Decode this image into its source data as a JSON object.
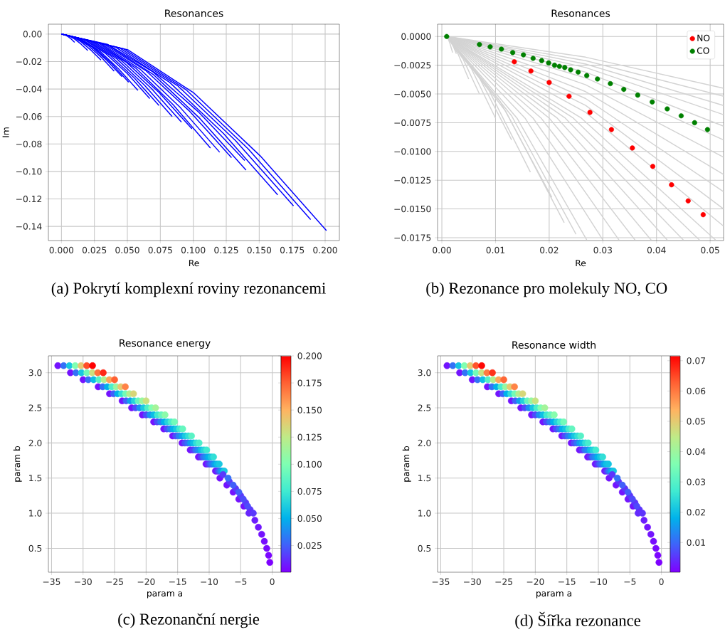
{
  "chart_data": [
    {
      "type": "line",
      "title": "Resonances",
      "xlabel": "Re",
      "ylabel": "Im",
      "grid": true,
      "xlim": [
        -0.0099,
        0.2108
      ],
      "ylim": [
        -0.1503,
        0.0072
      ],
      "xticks": [
        {
          "value": 0,
          "label": "0.000"
        },
        {
          "value": 0.025,
          "label": "0.025"
        },
        {
          "value": 0.05,
          "label": "0.050"
        },
        {
          "value": 0.075,
          "label": "0.075"
        },
        {
          "value": 0.1,
          "label": "0.100"
        },
        {
          "value": 0.125,
          "label": "0.125"
        },
        {
          "value": 0.15,
          "label": "0.150"
        },
        {
          "value": 0.175,
          "label": "0.175"
        },
        {
          "value": 0.2,
          "label": "0.200"
        }
      ],
      "yticks": [
        {
          "value": -0.14,
          "label": "−0.14"
        },
        {
          "value": -0.12,
          "label": "−0.12"
        },
        {
          "value": -0.1,
          "label": "−0.10"
        },
        {
          "value": -0.08,
          "label": "−0.08"
        },
        {
          "value": -0.06,
          "label": "−0.06"
        },
        {
          "value": -0.04,
          "label": "−0.04"
        },
        {
          "value": -0.02,
          "label": "−0.02"
        },
        {
          "value": 0,
          "label": "0.00"
        }
      ],
      "annotations": [
        "(a) Pokrytí komplexní roviny rezonancemi"
      ],
      "series": [
        {
          "color": "#0000ff",
          "x": [
            0,
            0.0025,
            0.005,
            0.0075,
            0.01
          ],
          "values": [
            0,
            -0.0005,
            -0.0018,
            -0.0037,
            -0.006
          ]
        },
        {
          "color": "#0000ff",
          "x": [
            0,
            0.005,
            0.01,
            0.015,
            0.02
          ],
          "values": [
            0,
            -0.001,
            -0.0036,
            -0.0074,
            -0.012
          ]
        },
        {
          "color": "#0000ff",
          "x": [
            0,
            0.0075,
            0.015,
            0.0225,
            0.03
          ],
          "values": [
            0,
            -0.0015,
            -0.0057,
            -0.0118,
            -0.019
          ]
        },
        {
          "color": "#0000ff",
          "x": [
            0,
            0.01,
            0.02,
            0.03,
            0.04
          ],
          "values": [
            0,
            -0.0022,
            -0.0081,
            -0.0167,
            -0.027
          ]
        },
        {
          "color": "#0000ff",
          "x": [
            0,
            0.0115,
            0.023,
            0.0345,
            0.046
          ],
          "values": [
            0,
            -0.0025,
            -0.0093,
            -0.0192,
            -0.031
          ]
        },
        {
          "color": "#0000ff",
          "x": [
            0,
            0.0128,
            0.0255,
            0.0383,
            0.051
          ],
          "values": [
            0,
            -0.0028,
            -0.0105,
            -0.0217,
            -0.035
          ]
        },
        {
          "color": "#0000ff",
          "x": [
            0,
            0.0145,
            0.029,
            0.0435,
            0.058
          ],
          "values": [
            0,
            -0.0033,
            -0.0123,
            -0.0254,
            -0.041
          ]
        },
        {
          "color": "#0000ff",
          "x": [
            0,
            0.0168,
            0.0335,
            0.0503,
            0.067
          ],
          "values": [
            0,
            -0.0038,
            -0.0141,
            -0.0291,
            -0.047
          ]
        },
        {
          "color": "#0000ff",
          "x": [
            0,
            0.0185,
            0.037,
            0.0555,
            0.074
          ],
          "values": [
            0,
            -0.0042,
            -0.0156,
            -0.0322,
            -0.052
          ]
        },
        {
          "color": "#0000ff",
          "x": [
            0,
            0.021,
            0.042,
            0.063,
            0.084
          ],
          "values": [
            0,
            -0.0048,
            -0.018,
            -0.0372,
            -0.06
          ]
        },
        {
          "color": "#0000ff",
          "x": [
            0,
            0.0228,
            0.0455,
            0.0683,
            0.091
          ],
          "values": [
            0,
            -0.0051,
            -0.0192,
            -0.0397,
            -0.064
          ]
        },
        {
          "color": "#0000ff",
          "x": [
            0,
            0.0248,
            0.0495,
            0.0743,
            0.099
          ],
          "values": [
            0,
            -0.0055,
            -0.0207,
            -0.0428,
            -0.069
          ]
        },
        {
          "color": "#0000ff",
          "x": [
            0,
            0.0283,
            0.0565,
            0.0848,
            0.113
          ],
          "values": [
            0,
            -0.0066,
            -0.0249,
            -0.0515,
            -0.083
          ]
        },
        {
          "color": "#0000ff",
          "x": [
            0,
            0.03,
            0.06,
            0.09,
            0.12
          ],
          "values": [
            0,
            -0.0069,
            -0.0258,
            -0.0533,
            -0.086
          ]
        },
        {
          "color": "#0000ff",
          "x": [
            0,
            0.0323,
            0.0645,
            0.0968,
            0.129
          ],
          "values": [
            0,
            -0.0072,
            -0.027,
            -0.0558,
            -0.09
          ]
        },
        {
          "color": "#0000ff",
          "x": [
            0,
            0.0348,
            0.0695,
            0.1043,
            0.139
          ],
          "values": [
            0,
            -0.0074,
            -0.0276,
            -0.057,
            -0.092
          ]
        },
        {
          "color": "#0000ff",
          "x": [
            0,
            0.035,
            0.07,
            0.105,
            0.14
          ],
          "values": [
            0,
            -0.0079,
            -0.0297,
            -0.0614,
            -0.099
          ]
        },
        {
          "color": "#0000ff",
          "x": [
            0,
            0.041,
            0.082,
            0.123,
            0.164
          ],
          "values": [
            0,
            -0.0094,
            -0.0351,
            -0.0725,
            -0.117
          ]
        },
        {
          "color": "#0000ff",
          "x": [
            0,
            0.044,
            0.088,
            0.132,
            0.176
          ],
          "values": [
            0,
            -0.01,
            -0.0375,
            -0.0775,
            -0.125
          ]
        },
        {
          "color": "#0000ff",
          "x": [
            0,
            0.0473,
            0.0945,
            0.1418,
            0.189
          ],
          "values": [
            0,
            -0.0108,
            -0.0405,
            -0.0837,
            -0.135
          ]
        },
        {
          "color": "#0000ff",
          "x": [
            0,
            0.0503,
            0.1005,
            0.1508,
            0.201
          ],
          "values": [
            0,
            -0.0114,
            -0.0429,
            -0.0887,
            -0.143
          ]
        }
      ]
    },
    {
      "type": "line",
      "title": "Resonances",
      "xlabel": "Re",
      "grid": true,
      "legend": "top right",
      "xlim": [
        -0.0008,
        0.0525
      ],
      "ylim": [
        -0.01775,
        0.00107
      ],
      "xticks": [
        {
          "value": 0,
          "label": "0.00"
        },
        {
          "value": 0.01,
          "label": "0.01"
        },
        {
          "value": 0.02,
          "label": "0.02"
        },
        {
          "value": 0.03,
          "label": "0.03"
        },
        {
          "value": 0.04,
          "label": "0.04"
        },
        {
          "value": 0.05,
          "label": "0.05"
        }
      ],
      "yticks": [
        {
          "value": -0.0175,
          "label": "−0.0175"
        },
        {
          "value": -0.015,
          "label": "−0.0150"
        },
        {
          "value": -0.0125,
          "label": "−0.0125"
        },
        {
          "value": -0.01,
          "label": "−0.0100"
        },
        {
          "value": -0.0075,
          "label": "−0.0075"
        },
        {
          "value": -0.005,
          "label": "−0.0050"
        },
        {
          "value": -0.0025,
          "label": "−0.0025"
        },
        {
          "value": 0,
          "label": "0.0000"
        }
      ],
      "annotations": [
        "(b) Rezonance pro molekuly NO, CO"
      ],
      "series": [
        {
          "color": "#d3d3d3",
          "x": [
            0.001,
            0.0015,
            0.002
          ],
          "values": [
            0,
            -0.0006,
            -0.0014
          ]
        },
        {
          "color": "#d3d3d3",
          "x": [
            0.001,
            0.0019,
            0.0027
          ],
          "values": [
            0,
            -0.0006,
            -0.0015
          ]
        },
        {
          "color": "#d3d3d3",
          "x": [
            0.001,
            0.003,
            0.005
          ],
          "values": [
            0,
            -0.0015,
            -0.0037
          ]
        },
        {
          "color": "#d3d3d3",
          "x": [
            0.001,
            0.004,
            0.007
          ],
          "values": [
            0,
            -0.002,
            -0.005
          ]
        },
        {
          "color": "#d3d3d3",
          "x": [
            0.001,
            0.0055,
            0.01
          ],
          "values": [
            0,
            -0.0028,
            -0.0071
          ]
        },
        {
          "color": "#d3d3d3",
          "x": [
            0.001,
            0.007,
            0.013
          ],
          "values": [
            0,
            -0.0036,
            -0.009
          ]
        },
        {
          "color": "#d3d3d3",
          "x": [
            0.001,
            0.0088,
            0.0165
          ],
          "values": [
            0,
            -0.0047,
            -0.0118
          ]
        },
        {
          "color": "#d3d3d3",
          "x": [
            0.001,
            0.0108,
            0.0205
          ],
          "values": [
            0,
            -0.0056,
            -0.014
          ]
        },
        {
          "color": "#d3d3d3",
          "x": [
            0.001,
            0.0119,
            0.0228
          ],
          "values": [
            0,
            -0.0065,
            -0.0162
          ]
        },
        {
          "color": "#d3d3d3",
          "x": [
            0.001,
            0.013,
            0.025
          ],
          "values": [
            0,
            -0.0069,
            -0.0172
          ]
        },
        {
          "color": "#d3d3d3",
          "x": [
            0.001,
            0.014,
            0.027
          ],
          "values": [
            0,
            -0.0071,
            -0.0177
          ]
        },
        {
          "color": "#d3d3d3",
          "x": [
            0.001,
            0.0155,
            0.03
          ],
          "values": [
            0,
            -0.0071,
            -0.0177
          ]
        },
        {
          "color": "#d3d3d3",
          "x": [
            0.001,
            0.017,
            0.033
          ],
          "values": [
            0,
            -0.0071,
            -0.0177
          ]
        },
        {
          "color": "#d3d3d3",
          "x": [
            0.001,
            0.0185,
            0.036
          ],
          "values": [
            0,
            -0.0071,
            -0.0177
          ]
        },
        {
          "color": "#d3d3d3",
          "x": [
            0.001,
            0.02,
            0.039
          ],
          "values": [
            0,
            -0.0071,
            -0.0177
          ]
        },
        {
          "color": "#d3d3d3",
          "x": [
            0.001,
            0.0215,
            0.042
          ],
          "values": [
            0,
            -0.0071,
            -0.0177
          ]
        },
        {
          "color": "#d3d3d3",
          "x": [
            0.001,
            0.023,
            0.045
          ],
          "values": [
            0,
            -0.0071,
            -0.0177
          ]
        },
        {
          "color": "#d3d3d3",
          "x": [
            0.001,
            0.0245,
            0.048
          ],
          "values": [
            0,
            -0.0071,
            -0.0177
          ]
        },
        {
          "color": "#d3d3d3",
          "x": [
            0.001,
            0.026,
            0.051
          ],
          "values": [
            0,
            -0.0071,
            -0.0177
          ]
        },
        {
          "color": "#d3d3d3",
          "x": [
            0.001,
            0.0268,
            0.0525
          ],
          "values": [
            0,
            -0.0066,
            -0.0165
          ]
        },
        {
          "color": "#d3d3d3",
          "x": [
            0.001,
            0.0268,
            0.0525
          ],
          "values": [
            0,
            -0.006,
            -0.015
          ]
        },
        {
          "color": "#d3d3d3",
          "x": [
            0.001,
            0.0268,
            0.0525
          ],
          "values": [
            0,
            -0.0054,
            -0.0135
          ]
        },
        {
          "color": "#d3d3d3",
          "x": [
            0.001,
            0.0268,
            0.0525
          ],
          "values": [
            0,
            -0.0048,
            -0.012
          ]
        },
        {
          "color": "#d3d3d3",
          "x": [
            0.001,
            0.0268,
            0.0525
          ],
          "values": [
            0,
            -0.0042,
            -0.0105
          ]
        },
        {
          "color": "#d3d3d3",
          "x": [
            0.001,
            0.0268,
            0.0525
          ],
          "values": [
            0,
            -0.0036,
            -0.009
          ]
        },
        {
          "color": "#d3d3d3",
          "x": [
            0.001,
            0.0268,
            0.0525
          ],
          "values": [
            0,
            -0.0031,
            -0.0078
          ]
        },
        {
          "color": "#d3d3d3",
          "x": [
            0.001,
            0.0268,
            0.0525
          ],
          "values": [
            0,
            -0.0027,
            -0.0068
          ]
        },
        {
          "color": "#d3d3d3",
          "x": [
            0.001,
            0.0268,
            0.0525
          ],
          "values": [
            0,
            -0.0024,
            -0.006
          ]
        },
        {
          "color": "#d3d3d3",
          "x": [
            0.001,
            0.0268,
            0.0525
          ],
          "values": [
            0,
            -0.0021,
            -0.0052
          ]
        },
        {
          "color": "#d3d3d3",
          "x": [
            0.001,
            0.0268,
            0.0525
          ],
          "values": [
            0,
            -0.0018,
            -0.0045
          ]
        },
        {
          "name": "NO",
          "type": "scatter",
          "marker": "circle",
          "color": "#ff0000",
          "x": [
            0.0135,
            0.0166,
            0.02,
            0.0237,
            0.0276,
            0.0316,
            0.0355,
            0.0393,
            0.0428,
            0.0459,
            0.0487
          ],
          "values": [
            -0.0022,
            -0.003,
            -0.004,
            -0.0052,
            -0.0066,
            -0.0081,
            -0.0097,
            -0.0113,
            -0.0129,
            -0.0143,
            -0.0155
          ]
        },
        {
          "name": "CO",
          "type": "scatter",
          "marker": "circle",
          "color": "#008000",
          "x": [
            0.0009,
            0.007,
            0.009,
            0.0111,
            0.0132,
            0.0152,
            0.017,
            0.0186,
            0.0199,
            0.021,
            0.0219,
            0.0229,
            0.024,
            0.0254,
            0.027,
            0.029,
            0.0314,
            0.0339,
            0.0365,
            0.0392,
            0.042,
            0.0446,
            0.0471,
            0.0495
          ],
          "values": [
            0,
            -0.0007,
            -0.0009,
            -0.0011,
            -0.0014,
            -0.0016,
            -0.0019,
            -0.0021,
            -0.0023,
            -0.0025,
            -0.0026,
            -0.0027,
            -0.0029,
            -0.0031,
            -0.0034,
            -0.0037,
            -0.0041,
            -0.0046,
            -0.0051,
            -0.0057,
            -0.0063,
            -0.0069,
            -0.0075,
            -0.0081
          ]
        }
      ]
    },
    {
      "type": "scatter",
      "title": "Resonance energy",
      "xlabel": "param a",
      "ylabel": "param b",
      "grid": true,
      "marker": "circle",
      "xlim": [
        -35.5,
        1.4
      ],
      "ylim": [
        0.16,
        3.24
      ],
      "xticks": [
        {
          "value": -35,
          "label": "−35"
        },
        {
          "value": -30,
          "label": "−30"
        },
        {
          "value": -25,
          "label": "−25"
        },
        {
          "value": -20,
          "label": "−20"
        },
        {
          "value": -15,
          "label": "−15"
        },
        {
          "value": -10,
          "label": "−10"
        },
        {
          "value": -5,
          "label": "−5"
        },
        0
      ],
      "yticks": [
        0.5,
        {
          "value": 1,
          "label": "1.0"
        },
        1.5,
        {
          "value": 2,
          "label": "2.0"
        },
        2.5,
        {
          "value": 3,
          "label": "3.0"
        }
      ],
      "clim": [
        0.0004,
        0.2
      ],
      "cticks": [
        {
          "value": 0.025,
          "label": "0.025"
        },
        {
          "value": 0.05,
          "label": "0.050"
        },
        {
          "value": 0.075,
          "label": "0.075"
        },
        {
          "value": 0.1,
          "label": "0.100"
        },
        {
          "value": 0.125,
          "label": "0.125"
        },
        {
          "value": 0.15,
          "label": "0.150"
        },
        {
          "value": 0.175,
          "label": "0.175"
        },
        {
          "value": 0.2,
          "label": "0.200"
        }
      ],
      "annotations": [
        "(c) Rezonanční nergie"
      ],
      "x": [
        -34,
        -33.08,
        -32.17,
        -31.25,
        -30.33,
        -29.42,
        -28.5,
        -32,
        -31.13,
        -30.27,
        -29.4,
        -28.53,
        -27.67,
        -26.8,
        -30,
        -29.17,
        -28.33,
        -27.5,
        -26.67,
        -25.83,
        -25,
        -27.6,
        -26.88,
        -26.17,
        -25.45,
        -24.73,
        -24.02,
        -23.3,
        -25.8,
        -25.17,
        -24.53,
        -23.9,
        -23.27,
        -22.63,
        -22,
        -23.8,
        -23.17,
        -22.53,
        -21.9,
        -21.27,
        -20.63,
        -20,
        -22.3,
        -21.67,
        -21.03,
        -20.4,
        -19.77,
        -19.13,
        -18.5,
        -20.6,
        -20,
        -19.4,
        -18.8,
        -18.2,
        -17.6,
        -17,
        -18.8,
        -18.25,
        -17.7,
        -17.15,
        -16.6,
        -16.05,
        -15.5,
        -17.2,
        -16.7,
        -16.2,
        -15.7,
        -15.2,
        -14.7,
        -14.2,
        -15.8,
        -15.3,
        -14.8,
        -14.3,
        -13.8,
        -13.3,
        -12.8,
        -14.3,
        -13.85,
        -13.4,
        -12.95,
        -12.5,
        -12.05,
        -11.6,
        -13,
        -12.57,
        -12.13,
        -11.7,
        -11.27,
        -10.83,
        -10.4,
        -11.7,
        -11.3,
        -10.9,
        -10.5,
        -10.1,
        -9.7,
        -9.3,
        -10.5,
        -10.15,
        -9.8,
        -9.45,
        -9.1,
        -8.75,
        -8.4,
        -9,
        -8.77,
        -8.53,
        -8.3,
        -8.07,
        -7.83,
        -7.6,
        -8.3,
        -7.2,
        -6.2,
        -5.3,
        -4.5,
        -7.8,
        -6.8,
        -5.8,
        -5,
        -4.2,
        -3.5,
        -7,
        -6.2,
        -5.3,
        -4.6,
        -3.9,
        -3.7,
        -3,
        -2.75,
        -2.2,
        -1.67,
        -1.25,
        -0.87,
        -0.57,
        -0.38
      ],
      "values": [
        3.1,
        3.1,
        3.1,
        3.1,
        3.1,
        3.1,
        3.1,
        3,
        3,
        3,
        3,
        3,
        3,
        3,
        2.9,
        2.9,
        2.9,
        2.9,
        2.9,
        2.9,
        2.9,
        2.8,
        2.8,
        2.8,
        2.8,
        2.8,
        2.8,
        2.8,
        2.7,
        2.7,
        2.7,
        2.7,
        2.7,
        2.7,
        2.7,
        2.6,
        2.6,
        2.6,
        2.6,
        2.6,
        2.6,
        2.6,
        2.5,
        2.5,
        2.5,
        2.5,
        2.5,
        2.5,
        2.5,
        2.4,
        2.4,
        2.4,
        2.4,
        2.4,
        2.4,
        2.4,
        2.3,
        2.3,
        2.3,
        2.3,
        2.3,
        2.3,
        2.3,
        2.2,
        2.2,
        2.2,
        2.2,
        2.2,
        2.2,
        2.2,
        2.1,
        2.1,
        2.1,
        2.1,
        2.1,
        2.1,
        2.1,
        2,
        2,
        2,
        2,
        2,
        2,
        2,
        1.9,
        1.9,
        1.9,
        1.9,
        1.9,
        1.9,
        1.9,
        1.8,
        1.8,
        1.8,
        1.8,
        1.8,
        1.8,
        1.8,
        1.7,
        1.7,
        1.7,
        1.7,
        1.7,
        1.7,
        1.7,
        1.6,
        1.6,
        1.6,
        1.6,
        1.6,
        1.6,
        1.6,
        1.5,
        1.4,
        1.3,
        1.2,
        1.1,
        1.55,
        1.45,
        1.35,
        1.25,
        1.15,
        1.05,
        1.5,
        1.4,
        1.3,
        1.2,
        1.1,
        1,
        1,
        0.9,
        0.8,
        0.7,
        0.6,
        0.5,
        0.4,
        0.3
      ],
      "cvalues": [
        0.005,
        0.03,
        0.06,
        0.1,
        0.14,
        0.18,
        0.2,
        0.005,
        0.03,
        0.06,
        0.095,
        0.13,
        0.17,
        0.19,
        0.005,
        0.03,
        0.055,
        0.085,
        0.12,
        0.155,
        0.175,
        0.005,
        0.03,
        0.05,
        0.08,
        0.11,
        0.14,
        0.165,
        0.005,
        0.025,
        0.05,
        0.07,
        0.095,
        0.12,
        0.135,
        0.005,
        0.025,
        0.045,
        0.065,
        0.09,
        0.11,
        0.13,
        0.005,
        0.02,
        0.04,
        0.06,
        0.08,
        0.1,
        0.115,
        0.005,
        0.02,
        0.04,
        0.055,
        0.075,
        0.09,
        0.105,
        0.005,
        0.02,
        0.035,
        0.05,
        0.065,
        0.08,
        0.095,
        0.005,
        0.02,
        0.035,
        0.05,
        0.06,
        0.075,
        0.09,
        0.005,
        0.02,
        0.035,
        0.045,
        0.06,
        0.07,
        0.085,
        0.005,
        0.02,
        0.03,
        0.045,
        0.055,
        0.07,
        0.08,
        0.005,
        0.015,
        0.03,
        0.04,
        0.055,
        0.065,
        0.075,
        0.005,
        0.015,
        0.03,
        0.04,
        0.05,
        0.06,
        0.07,
        0.005,
        0.015,
        0.025,
        0.035,
        0.045,
        0.055,
        0.06,
        0.005,
        0.01,
        0.02,
        0.03,
        0.04,
        0.05,
        0.06,
        0.005,
        0.005,
        0.005,
        0.005,
        0.005,
        0.015,
        0.015,
        0.015,
        0.015,
        0.015,
        0.015,
        0.03,
        0.025,
        0.025,
        0.02,
        0.02,
        0.01,
        0.015,
        0.008,
        0.006,
        0.005,
        0.004,
        0.003,
        0.002,
        0.001
      ]
    },
    {
      "type": "scatter",
      "title": "Resonance width",
      "xlabel": "param a",
      "ylabel": "param b",
      "grid": true,
      "marker": "circle",
      "xlim": [
        -35.5,
        1.4
      ],
      "ylim": [
        0.16,
        3.24
      ],
      "xticks": [
        {
          "value": -35,
          "label": "−35"
        },
        {
          "value": -30,
          "label": "−30"
        },
        {
          "value": -25,
          "label": "−25"
        },
        {
          "value": -20,
          "label": "−20"
        },
        {
          "value": -15,
          "label": "−15"
        },
        {
          "value": -10,
          "label": "−10"
        },
        {
          "value": -5,
          "label": "−5"
        },
        0
      ],
      "yticks": [
        0.5,
        {
          "value": 1,
          "label": "1.0"
        },
        1.5,
        {
          "value": 2,
          "label": "2.0"
        },
        2.5,
        {
          "value": 3,
          "label": "3.0"
        }
      ],
      "clim": [
        0.0002,
        0.0716
      ],
      "cticks": [
        0.01,
        0.02,
        0.03,
        0.04,
        0.05,
        0.06,
        0.07
      ],
      "annotations": [
        "(d) Šířka rezonance"
      ],
      "x": [
        -34,
        -33.08,
        -32.17,
        -31.25,
        -30.33,
        -29.42,
        -28.5,
        -32,
        -31.13,
        -30.27,
        -29.4,
        -28.53,
        -27.67,
        -26.8,
        -30,
        -29.17,
        -28.33,
        -27.5,
        -26.67,
        -25.83,
        -25,
        -27.6,
        -26.88,
        -26.17,
        -25.45,
        -24.73,
        -24.02,
        -23.3,
        -25.8,
        -25.17,
        -24.53,
        -23.9,
        -23.27,
        -22.63,
        -22,
        -23.8,
        -23.17,
        -22.53,
        -21.9,
        -21.27,
        -20.63,
        -20,
        -22.3,
        -21.67,
        -21.03,
        -20.4,
        -19.77,
        -19.13,
        -18.5,
        -20.6,
        -20,
        -19.4,
        -18.8,
        -18.2,
        -17.6,
        -17,
        -18.8,
        -18.25,
        -17.7,
        -17.15,
        -16.6,
        -16.05,
        -15.5,
        -17.2,
        -16.7,
        -16.2,
        -15.7,
        -15.2,
        -14.7,
        -14.2,
        -15.8,
        -15.3,
        -14.8,
        -14.3,
        -13.8,
        -13.3,
        -12.8,
        -14.3,
        -13.85,
        -13.4,
        -12.95,
        -12.5,
        -12.05,
        -11.6,
        -13,
        -12.57,
        -12.13,
        -11.7,
        -11.27,
        -10.83,
        -10.4,
        -11.7,
        -11.3,
        -10.9,
        -10.5,
        -10.1,
        -9.7,
        -9.3,
        -10.5,
        -10.15,
        -9.8,
        -9.45,
        -9.1,
        -8.75,
        -8.4,
        -9,
        -8.77,
        -8.53,
        -8.3,
        -8.07,
        -7.83,
        -7.6,
        -8.3,
        -7.2,
        -6.2,
        -5.3,
        -4.5,
        -7.8,
        -6.8,
        -5.8,
        -5,
        -4.2,
        -3.5,
        -7,
        -6.2,
        -5.3,
        -4.6,
        -3.9,
        -3.7,
        -3,
        -2.75,
        -2.2,
        -1.67,
        -1.25,
        -0.87,
        -0.57,
        -0.38
      ],
      "values": [
        3.1,
        3.1,
        3.1,
        3.1,
        3.1,
        3.1,
        3.1,
        3,
        3,
        3,
        3,
        3,
        3,
        3,
        2.9,
        2.9,
        2.9,
        2.9,
        2.9,
        2.9,
        2.9,
        2.8,
        2.8,
        2.8,
        2.8,
        2.8,
        2.8,
        2.8,
        2.7,
        2.7,
        2.7,
        2.7,
        2.7,
        2.7,
        2.7,
        2.6,
        2.6,
        2.6,
        2.6,
        2.6,
        2.6,
        2.6,
        2.5,
        2.5,
        2.5,
        2.5,
        2.5,
        2.5,
        2.5,
        2.4,
        2.4,
        2.4,
        2.4,
        2.4,
        2.4,
        2.4,
        2.3,
        2.3,
        2.3,
        2.3,
        2.3,
        2.3,
        2.3,
        2.2,
        2.2,
        2.2,
        2.2,
        2.2,
        2.2,
        2.2,
        2.1,
        2.1,
        2.1,
        2.1,
        2.1,
        2.1,
        2.1,
        2,
        2,
        2,
        2,
        2,
        2,
        2,
        1.9,
        1.9,
        1.9,
        1.9,
        1.9,
        1.9,
        1.9,
        1.8,
        1.8,
        1.8,
        1.8,
        1.8,
        1.8,
        1.8,
        1.7,
        1.7,
        1.7,
        1.7,
        1.7,
        1.7,
        1.7,
        1.6,
        1.6,
        1.6,
        1.6,
        1.6,
        1.6,
        1.6,
        1.5,
        1.4,
        1.3,
        1.2,
        1.1,
        1.55,
        1.45,
        1.35,
        1.25,
        1.15,
        1.05,
        1.5,
        1.4,
        1.3,
        1.2,
        1.1,
        1,
        1,
        0.9,
        0.8,
        0.7,
        0.6,
        0.5,
        0.4,
        0.3
      ],
      "cvalues": [
        0.002,
        0.011,
        0.021,
        0.036,
        0.05,
        0.064,
        0.071,
        0.002,
        0.011,
        0.021,
        0.034,
        0.046,
        0.06,
        0.067,
        0.002,
        0.011,
        0.02,
        0.03,
        0.043,
        0.055,
        0.062,
        0.002,
        0.011,
        0.018,
        0.028,
        0.039,
        0.05,
        0.059,
        0.002,
        0.009,
        0.018,
        0.025,
        0.034,
        0.043,
        0.048,
        0.002,
        0.009,
        0.016,
        0.023,
        0.032,
        0.039,
        0.046,
        0.002,
        0.007,
        0.014,
        0.021,
        0.028,
        0.036,
        0.041,
        0.002,
        0.007,
        0.014,
        0.02,
        0.027,
        0.032,
        0.037,
        0.002,
        0.007,
        0.012,
        0.018,
        0.023,
        0.028,
        0.034,
        0.002,
        0.007,
        0.012,
        0.018,
        0.021,
        0.027,
        0.032,
        0.002,
        0.007,
        0.012,
        0.016,
        0.021,
        0.025,
        0.03,
        0.002,
        0.007,
        0.011,
        0.016,
        0.02,
        0.025,
        0.028,
        0.002,
        0.005,
        0.011,
        0.014,
        0.02,
        0.023,
        0.027,
        0.002,
        0.005,
        0.011,
        0.014,
        0.018,
        0.021,
        0.025,
        0.002,
        0.005,
        0.009,
        0.012,
        0.016,
        0.02,
        0.021,
        0.002,
        0.004,
        0.007,
        0.011,
        0.014,
        0.018,
        0.021,
        0.002,
        0.002,
        0.002,
        0.002,
        0.002,
        0.005,
        0.005,
        0.005,
        0.005,
        0.005,
        0.005,
        0.011,
        0.009,
        0.009,
        0.007,
        0.007,
        0.004,
        0.005,
        0.003,
        0.002,
        0.002,
        0.0014,
        0.001,
        0.0007,
        0.0004
      ]
    }
  ]
}
